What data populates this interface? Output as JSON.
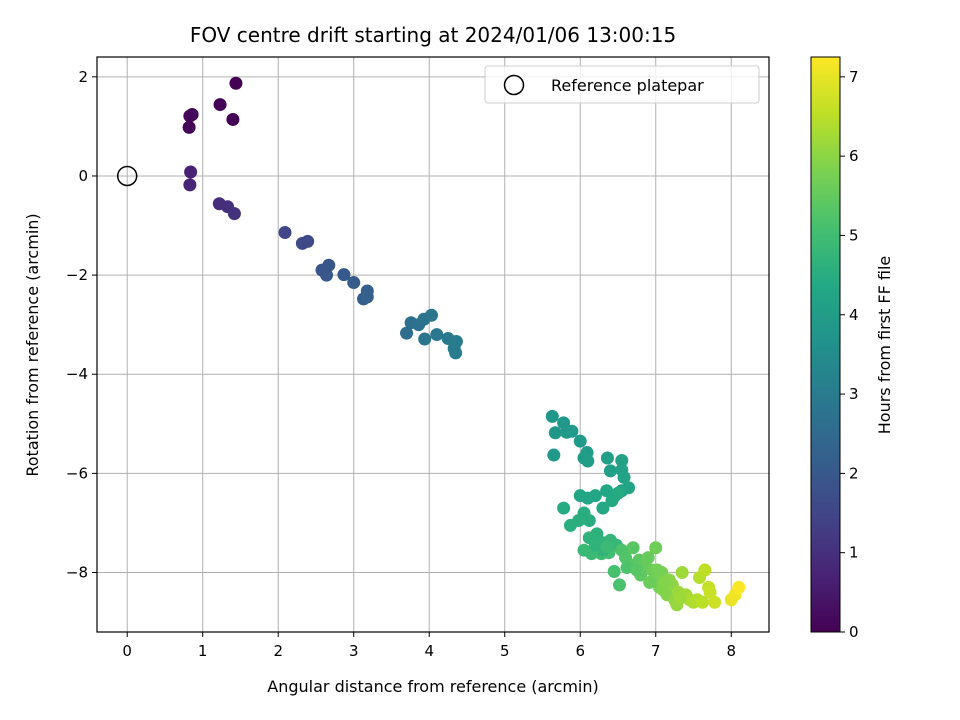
{
  "chart_data": {
    "type": "scatter",
    "title": "FOV centre drift starting at 2024/01/06 13:00:15",
    "xlabel": "Angular distance from reference (arcmin)",
    "ylabel": "Rotation from reference (arcmin)",
    "xlim": [
      -0.4,
      8.5
    ],
    "ylim": [
      -9.2,
      2.4
    ],
    "xticks": [
      0,
      1,
      2,
      3,
      4,
      5,
      6,
      7,
      8
    ],
    "xtick_labels": [
      "0",
      "1",
      "2",
      "3",
      "4",
      "5",
      "6",
      "7",
      "8"
    ],
    "yticks": [
      2,
      0,
      -2,
      -4,
      -6,
      -8
    ],
    "ytick_labels": [
      "2",
      "0",
      "−2",
      "−4",
      "−6",
      "−8"
    ],
    "grid": true,
    "colormap": "viridis",
    "colorbar": {
      "label": "Hours from first FF file",
      "range": [
        0,
        7.25
      ],
      "ticks": [
        0,
        1,
        2,
        3,
        4,
        5,
        6,
        7
      ],
      "tick_labels": [
        "0",
        "1",
        "2",
        "3",
        "4",
        "5",
        "6",
        "7"
      ]
    },
    "legend": {
      "position": "upper-right",
      "entries": [
        {
          "label": "Reference platepar",
          "marker": "open-circle"
        }
      ]
    },
    "reference_point": {
      "x": 0,
      "y": 0
    },
    "points": [
      [
        1.44,
        1.87,
        0.02
      ],
      [
        0.86,
        1.24,
        0.12
      ],
      [
        0.83,
        1.21,
        0.15
      ],
      [
        0.82,
        0.98,
        0.08
      ],
      [
        1.23,
        1.44,
        0.05
      ],
      [
        1.4,
        1.14,
        0.04
      ],
      [
        0.84,
        0.08,
        0.7
      ],
      [
        0.83,
        -0.18,
        0.75
      ],
      [
        1.22,
        -0.56,
        0.95
      ],
      [
        1.33,
        -0.62,
        1.0
      ],
      [
        1.42,
        -0.76,
        1.05
      ],
      [
        2.09,
        -1.14,
        1.5
      ],
      [
        2.32,
        -1.36,
        1.6
      ],
      [
        2.39,
        -1.32,
        1.62
      ],
      [
        2.58,
        -1.9,
        1.9
      ],
      [
        2.64,
        -2.0,
        1.95
      ],
      [
        2.67,
        -1.8,
        1.92
      ],
      [
        2.87,
        -1.99,
        2.05
      ],
      [
        3.0,
        -2.15,
        2.1
      ],
      [
        3.13,
        -2.48,
        2.15
      ],
      [
        3.18,
        -2.32,
        2.2
      ],
      [
        3.18,
        -2.44,
        2.25
      ],
      [
        3.7,
        -3.17,
        2.6
      ],
      [
        3.76,
        -2.96,
        2.65
      ],
      [
        3.86,
        -3.0,
        2.7
      ],
      [
        3.93,
        -2.89,
        2.75
      ],
      [
        3.94,
        -3.29,
        2.8
      ],
      [
        4.03,
        -2.81,
        2.85
      ],
      [
        4.1,
        -3.2,
        2.9
      ],
      [
        4.25,
        -3.28,
        2.95
      ],
      [
        4.33,
        -3.48,
        3.0
      ],
      [
        4.36,
        -3.34,
        3.0
      ],
      [
        4.35,
        -3.57,
        3.02
      ],
      [
        5.63,
        -4.85,
        3.8
      ],
      [
        5.67,
        -5.18,
        3.82
      ],
      [
        5.78,
        -4.98,
        3.85
      ],
      [
        5.82,
        -5.17,
        3.88
      ],
      [
        5.89,
        -5.15,
        3.9
      ],
      [
        5.65,
        -5.63,
        3.85
      ],
      [
        6.0,
        -5.35,
        3.92
      ],
      [
        6.05,
        -5.69,
        3.95
      ],
      [
        6.09,
        -5.58,
        3.98
      ],
      [
        6.1,
        -5.75,
        4.0
      ],
      [
        6.36,
        -5.69,
        4.05
      ],
      [
        6.4,
        -5.95,
        4.1
      ],
      [
        6.55,
        -5.74,
        4.12
      ],
      [
        6.55,
        -5.93,
        4.15
      ],
      [
        6.58,
        -6.08,
        4.18
      ],
      [
        6.55,
        -6.35,
        4.2
      ],
      [
        6.64,
        -6.29,
        4.22
      ],
      [
        6.0,
        -6.45,
        4.25
      ],
      [
        6.1,
        -6.5,
        4.28
      ],
      [
        6.2,
        -6.45,
        4.3
      ],
      [
        6.35,
        -6.35,
        4.32
      ],
      [
        6.45,
        -6.47,
        4.35
      ],
      [
        6.3,
        -6.7,
        4.38
      ],
      [
        6.42,
        -6.55,
        4.4
      ],
      [
        6.5,
        -6.4,
        4.42
      ],
      [
        5.78,
        -6.7,
        4.45
      ],
      [
        6.05,
        -6.8,
        4.48
      ],
      [
        6.12,
        -6.95,
        4.5
      ],
      [
        5.98,
        -6.95,
        4.52
      ],
      [
        5.87,
        -7.05,
        4.55
      ],
      [
        6.22,
        -7.22,
        4.6
      ],
      [
        6.12,
        -7.3,
        4.65
      ],
      [
        6.3,
        -7.4,
        4.7
      ],
      [
        6.4,
        -7.35,
        4.75
      ],
      [
        6.48,
        -7.45,
        4.8
      ],
      [
        6.05,
        -7.55,
        4.85
      ],
      [
        6.15,
        -7.62,
        4.9
      ],
      [
        6.28,
        -7.62,
        4.95
      ],
      [
        6.38,
        -7.6,
        5.0
      ],
      [
        6.45,
        -7.98,
        5.1
      ],
      [
        6.52,
        -8.25,
        5.15
      ],
      [
        6.55,
        -7.55,
        5.2
      ],
      [
        6.6,
        -7.7,
        5.25
      ],
      [
        6.68,
        -7.85,
        5.3
      ],
      [
        6.7,
        -7.5,
        5.35
      ],
      [
        6.78,
        -7.75,
        5.4
      ],
      [
        6.8,
        -8.05,
        5.45
      ],
      [
        6.85,
        -7.85,
        5.5
      ],
      [
        6.9,
        -7.7,
        5.55
      ],
      [
        6.95,
        -7.95,
        5.6
      ],
      [
        7.0,
        -7.5,
        5.65
      ],
      [
        7.0,
        -8.15,
        5.7
      ],
      [
        7.05,
        -8.3,
        5.75
      ],
      [
        7.08,
        -8.0,
        5.8
      ],
      [
        7.1,
        -8.35,
        5.85
      ],
      [
        7.15,
        -8.45,
        5.9
      ],
      [
        7.18,
        -8.15,
        5.95
      ],
      [
        7.22,
        -8.25,
        6.0
      ],
      [
        7.25,
        -8.55,
        6.05
      ],
      [
        7.28,
        -8.65,
        6.1
      ],
      [
        7.3,
        -8.4,
        6.15
      ],
      [
        7.35,
        -8.0,
        6.2
      ],
      [
        7.4,
        -8.45,
        6.25
      ],
      [
        7.45,
        -8.55,
        6.3
      ],
      [
        7.5,
        -8.6,
        6.35
      ],
      [
        7.55,
        -8.55,
        6.4
      ],
      [
        7.58,
        -8.1,
        6.45
      ],
      [
        7.62,
        -8.6,
        6.5
      ],
      [
        7.65,
        -7.95,
        6.55
      ],
      [
        7.7,
        -8.3,
        6.6
      ],
      [
        7.72,
        -8.4,
        6.65
      ],
      [
        7.78,
        -8.6,
        6.7
      ],
      [
        8.0,
        -8.55,
        7.0
      ],
      [
        8.05,
        -8.45,
        7.1
      ],
      [
        8.1,
        -8.3,
        7.2
      ],
      [
        6.3,
        -7.55,
        4.7
      ],
      [
        6.2,
        -7.45,
        4.68
      ],
      [
        6.35,
        -7.48,
        4.9
      ],
      [
        6.62,
        -7.9,
        5.2
      ],
      [
        6.92,
        -8.2,
        5.6
      ],
      [
        7.12,
        -8.2,
        5.9
      ],
      [
        7.32,
        -8.52,
        6.2
      ],
      [
        6.75,
        -7.95,
        5.35
      ],
      [
        7.02,
        -7.95,
        5.7
      ]
    ]
  }
}
